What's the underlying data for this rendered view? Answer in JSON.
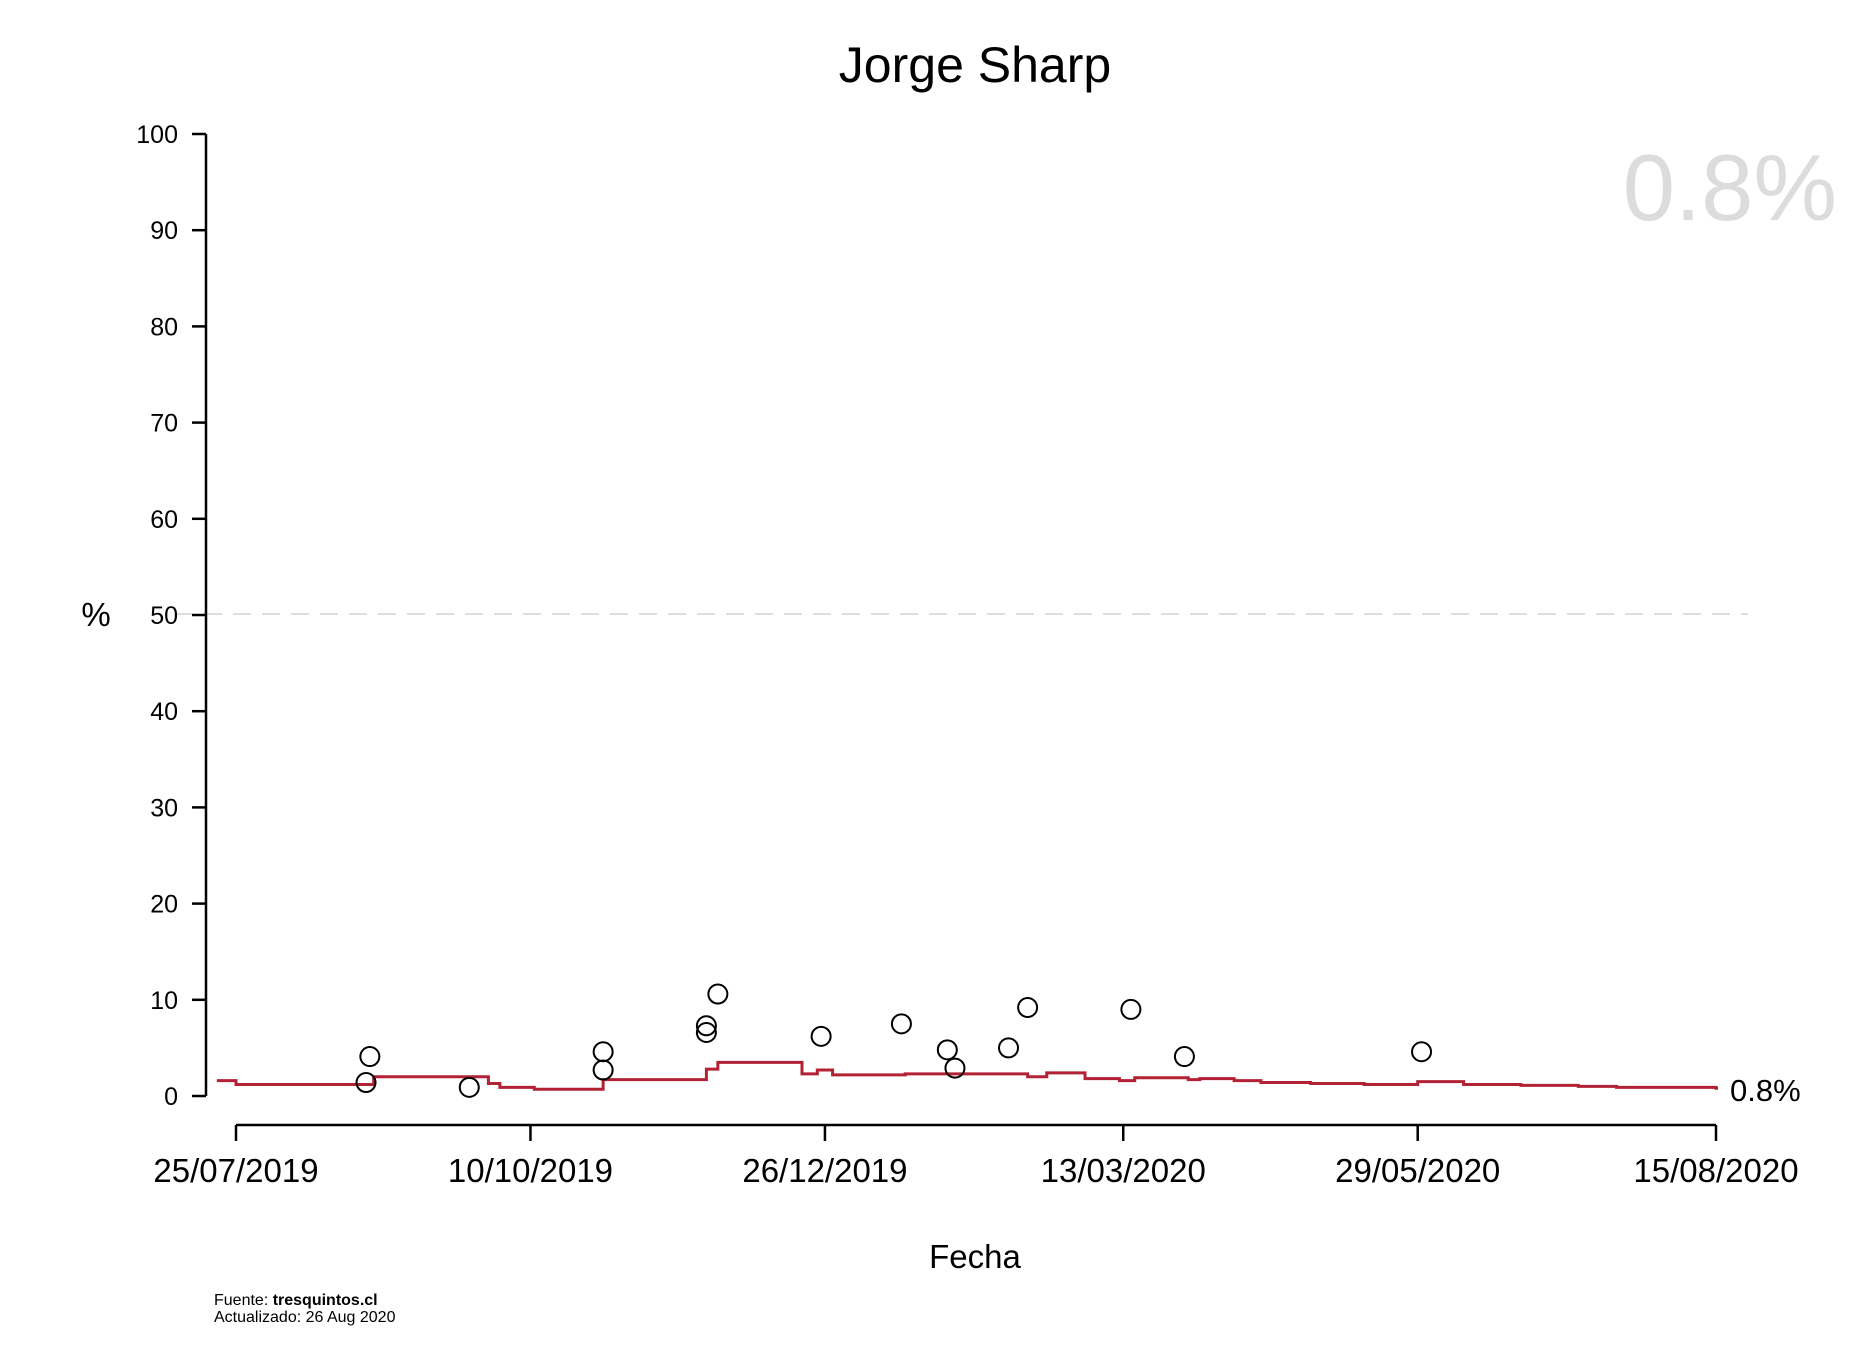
{
  "chart_data": {
    "type": "line",
    "title": "Jorge Sharp",
    "xlabel": "Fecha",
    "ylabel": "%",
    "ylim": [
      0,
      100
    ],
    "yticks": [
      "0",
      "10",
      "20",
      "30",
      "40",
      "50",
      "60",
      "70",
      "80",
      "90",
      "100"
    ],
    "xlim": [
      "2019-07-25",
      "2020-08-15"
    ],
    "xticks": [
      {
        "date": "2019-07-25",
        "label": "25/07/2019"
      },
      {
        "date": "2019-10-10",
        "label": "10/10/2019"
      },
      {
        "date": "2019-12-26",
        "label": "26/12/2019"
      },
      {
        "date": "2020-03-13",
        "label": "13/03/2020"
      },
      {
        "date": "2020-05-29",
        "label": "29/05/2020"
      },
      {
        "date": "2020-08-15",
        "label": "15/08/2020"
      }
    ],
    "reference_line": {
      "y": 50,
      "style": "dashed",
      "color": "#d3d3d3"
    },
    "latest_value_label": "0.8%",
    "end_label": "0.8%",
    "line_color": "#b22234",
    "series": [
      {
        "kind": "step",
        "values": [
          [
            "2019-07-20",
            1.6
          ],
          [
            "2019-07-25",
            1.2
          ],
          [
            "2019-08-30",
            2.0
          ],
          [
            "2019-09-29",
            1.3
          ],
          [
            "2019-10-02",
            0.9
          ],
          [
            "2019-10-11",
            0.7
          ],
          [
            "2019-10-29",
            1.7
          ],
          [
            "2019-11-25",
            2.8
          ],
          [
            "2019-11-28",
            3.5
          ],
          [
            "2019-12-20",
            2.3
          ],
          [
            "2019-12-24",
            2.7
          ],
          [
            "2019-12-28",
            2.2
          ],
          [
            "2020-01-16",
            2.3
          ],
          [
            "2020-02-01",
            2.3
          ],
          [
            "2020-02-17",
            2.0
          ],
          [
            "2020-02-22",
            2.4
          ],
          [
            "2020-03-03",
            1.8
          ],
          [
            "2020-03-12",
            1.6
          ],
          [
            "2020-03-16",
            1.9
          ],
          [
            "2020-03-30",
            1.7
          ],
          [
            "2020-04-02",
            1.8
          ],
          [
            "2020-04-11",
            1.6
          ],
          [
            "2020-04-18",
            1.4
          ],
          [
            "2020-05-01",
            1.3
          ],
          [
            "2020-05-15",
            1.2
          ],
          [
            "2020-05-29",
            1.5
          ],
          [
            "2020-06-10",
            1.2
          ],
          [
            "2020-06-25",
            1.1
          ],
          [
            "2020-07-10",
            1.0
          ],
          [
            "2020-07-20",
            0.9
          ],
          [
            "2020-08-15",
            0.8
          ]
        ]
      },
      {
        "kind": "points",
        "values": [
          [
            "2019-08-29",
            4.1
          ],
          [
            "2019-08-28",
            1.4
          ],
          [
            "2019-09-24",
            0.9
          ],
          [
            "2019-10-29",
            4.6
          ],
          [
            "2019-10-29",
            2.7
          ],
          [
            "2019-11-25",
            7.3
          ],
          [
            "2019-11-25",
            6.6
          ],
          [
            "2019-11-28",
            10.6
          ],
          [
            "2019-12-25",
            6.2
          ],
          [
            "2020-01-15",
            7.5
          ],
          [
            "2020-01-27",
            4.8
          ],
          [
            "2020-01-29",
            2.9
          ],
          [
            "2020-02-12",
            5.0
          ],
          [
            "2020-02-17",
            9.2
          ],
          [
            "2020-03-15",
            9.0
          ],
          [
            "2020-03-29",
            4.1
          ],
          [
            "2020-05-30",
            4.6
          ]
        ]
      }
    ]
  },
  "footer": {
    "source_label": "Fuente: ",
    "source_site": "tresquintos.cl",
    "updated": "Actualizado: 26 Aug 2020"
  }
}
